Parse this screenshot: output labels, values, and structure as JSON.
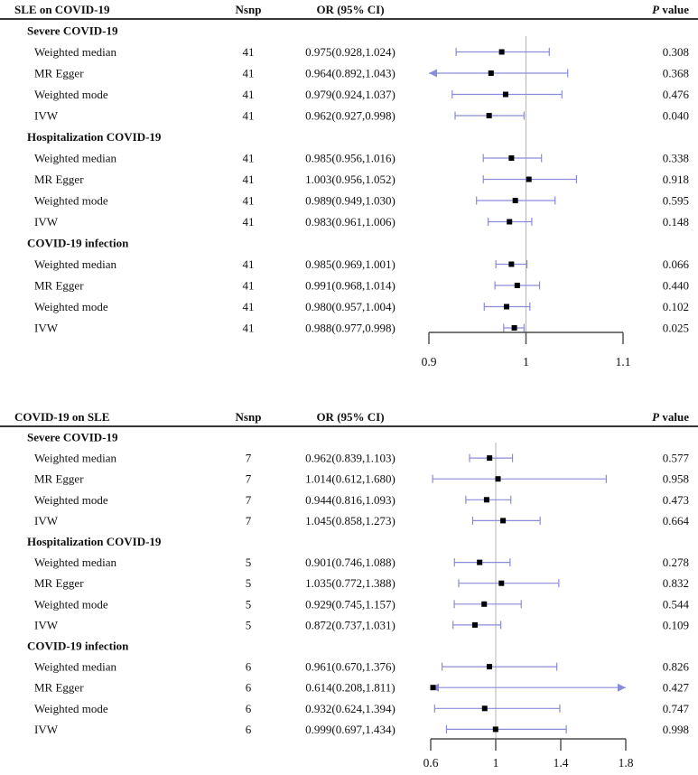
{
  "colors": {
    "ci_line": "#8b8bdb",
    "marker": "#000000",
    "ref_line": "#b4b4b4",
    "axis": "#4a4a4a",
    "rule": "#1a1a1a",
    "text": "#111111"
  },
  "chart_data": [
    {
      "type": "scatter",
      "subtype": "forest-plot",
      "title": "SLE on COVID-19",
      "columns": {
        "nsnp": "Nsnp",
        "or": "OR (95% CI)",
        "p_italic": "P",
        "p_rest": " value"
      },
      "axis": {
        "xlim": [
          0.9,
          1.1
        ],
        "ref": 1,
        "ticks": [
          {
            "v": 0.9,
            "label": "0.9"
          },
          {
            "v": 1.0,
            "label": "1"
          },
          {
            "v": 1.1,
            "label": "1.1"
          }
        ]
      },
      "groups": [
        {
          "label": "Severe COVID-19",
          "rows": [
            {
              "method": "Weighted median",
              "nsnp": "41",
              "or_text": "0.975(0.928,1.024)",
              "est": 0.975,
              "lo": 0.928,
              "hi": 1.024,
              "p": "0.308"
            },
            {
              "method": "MR Egger",
              "nsnp": "41",
              "or_text": "0.964(0.892,1.043)",
              "est": 0.964,
              "lo": 0.892,
              "hi": 1.043,
              "p": "0.368"
            },
            {
              "method": "Weighted mode",
              "nsnp": "41",
              "or_text": "0.979(0.924,1.037)",
              "est": 0.979,
              "lo": 0.924,
              "hi": 1.037,
              "p": "0.476"
            },
            {
              "method": "IVW",
              "nsnp": "41",
              "or_text": "0.962(0.927,0.998)",
              "est": 0.962,
              "lo": 0.927,
              "hi": 0.998,
              "p": "0.040"
            }
          ]
        },
        {
          "label": "Hospitalization COVID-19",
          "rows": [
            {
              "method": "Weighted median",
              "nsnp": "41",
              "or_text": "0.985(0.956,1.016)",
              "est": 0.985,
              "lo": 0.956,
              "hi": 1.016,
              "p": "0.338"
            },
            {
              "method": "MR Egger",
              "nsnp": "41",
              "or_text": "1.003(0.956,1.052)",
              "est": 1.003,
              "lo": 0.956,
              "hi": 1.052,
              "p": "0.918"
            },
            {
              "method": "Weighted mode",
              "nsnp": "41",
              "or_text": "0.989(0.949,1.030)",
              "est": 0.989,
              "lo": 0.949,
              "hi": 1.03,
              "p": "0.595"
            },
            {
              "method": "IVW",
              "nsnp": "41",
              "or_text": "0.983(0.961,1.006)",
              "est": 0.983,
              "lo": 0.961,
              "hi": 1.006,
              "p": "0.148"
            }
          ]
        },
        {
          "label": "COVID-19 infection",
          "rows": [
            {
              "method": "Weighted median",
              "nsnp": "41",
              "or_text": "0.985(0.969,1.001)",
              "est": 0.985,
              "lo": 0.969,
              "hi": 1.001,
              "p": "0.066"
            },
            {
              "method": "MR Egger",
              "nsnp": "41",
              "or_text": "0.991(0.968,1.014)",
              "est": 0.991,
              "lo": 0.968,
              "hi": 1.014,
              "p": "0.440"
            },
            {
              "method": "Weighted mode",
              "nsnp": "41",
              "or_text": "0.980(0.957,1.004)",
              "est": 0.98,
              "lo": 0.957,
              "hi": 1.004,
              "p": "0.102"
            },
            {
              "method": "IVW",
              "nsnp": "41",
              "or_text": "0.988(0.977,0.998)",
              "est": 0.988,
              "lo": 0.977,
              "hi": 0.998,
              "p": "0.025"
            }
          ]
        }
      ]
    },
    {
      "type": "scatter",
      "subtype": "forest-plot",
      "title": "COVID-19 on SLE",
      "columns": {
        "nsnp": "Nsnp",
        "or": "OR (95% CI)",
        "p_italic": "P",
        "p_rest": " value"
      },
      "axis": {
        "xlim": [
          0.6,
          1.8
        ],
        "ref": 1,
        "ticks": [
          {
            "v": 0.6,
            "label": "0.6"
          },
          {
            "v": 1.0,
            "label": "1"
          },
          {
            "v": 1.4,
            "label": "1.4"
          },
          {
            "v": 1.8,
            "label": "1.8"
          }
        ]
      },
      "groups": [
        {
          "label": "Severe COVID-19",
          "rows": [
            {
              "method": "Weighted median",
              "nsnp": "7",
              "or_text": "0.962(0.839,1.103)",
              "est": 0.962,
              "lo": 0.839,
              "hi": 1.103,
              "p": "0.577"
            },
            {
              "method": "MR Egger",
              "nsnp": "7",
              "or_text": "1.014(0.612,1.680)",
              "est": 1.014,
              "lo": 0.612,
              "hi": 1.68,
              "p": "0.958"
            },
            {
              "method": "Weighted mode",
              "nsnp": "7",
              "or_text": "0.944(0.816,1.093)",
              "est": 0.944,
              "lo": 0.816,
              "hi": 1.093,
              "p": "0.473"
            },
            {
              "method": "IVW",
              "nsnp": "7",
              "or_text": "1.045(0.858,1.273)",
              "est": 1.045,
              "lo": 0.858,
              "hi": 1.273,
              "p": "0.664"
            }
          ]
        },
        {
          "label": "Hospitalization COVID-19",
          "rows": [
            {
              "method": "Weighted median",
              "nsnp": "5",
              "or_text": "0.901(0.746,1.088)",
              "est": 0.901,
              "lo": 0.746,
              "hi": 1.088,
              "p": "0.278"
            },
            {
              "method": "MR Egger",
              "nsnp": "5",
              "or_text": "1.035(0.772,1.388)",
              "est": 1.035,
              "lo": 0.772,
              "hi": 1.388,
              "p": "0.832"
            },
            {
              "method": "Weighted mode",
              "nsnp": "5",
              "or_text": "0.929(0.745,1.157)",
              "est": 0.929,
              "lo": 0.745,
              "hi": 1.157,
              "p": "0.544"
            },
            {
              "method": "IVW",
              "nsnp": "5",
              "or_text": "0.872(0.737,1.031)",
              "est": 0.872,
              "lo": 0.737,
              "hi": 1.031,
              "p": "0.109"
            }
          ]
        },
        {
          "label": "COVID-19 infection",
          "rows": [
            {
              "method": "Weighted median",
              "nsnp": "6",
              "or_text": "0.961(0.670,1.376)",
              "est": 0.961,
              "lo": 0.67,
              "hi": 1.376,
              "p": "0.826"
            },
            {
              "method": "MR Egger",
              "nsnp": "6",
              "or_text": "0.614(0.208,1.811)",
              "est": 0.614,
              "lo": 0.208,
              "hi": 1.811,
              "p": "0.427"
            },
            {
              "method": "Weighted mode",
              "nsnp": "6",
              "or_text": "0.932(0.624,1.394)",
              "est": 0.932,
              "lo": 0.624,
              "hi": 1.394,
              "p": "0.747"
            },
            {
              "method": "IVW",
              "nsnp": "6",
              "or_text": "0.999(0.697,1.434)",
              "est": 0.999,
              "lo": 0.697,
              "hi": 1.434,
              "p": "0.998"
            }
          ]
        }
      ]
    }
  ]
}
